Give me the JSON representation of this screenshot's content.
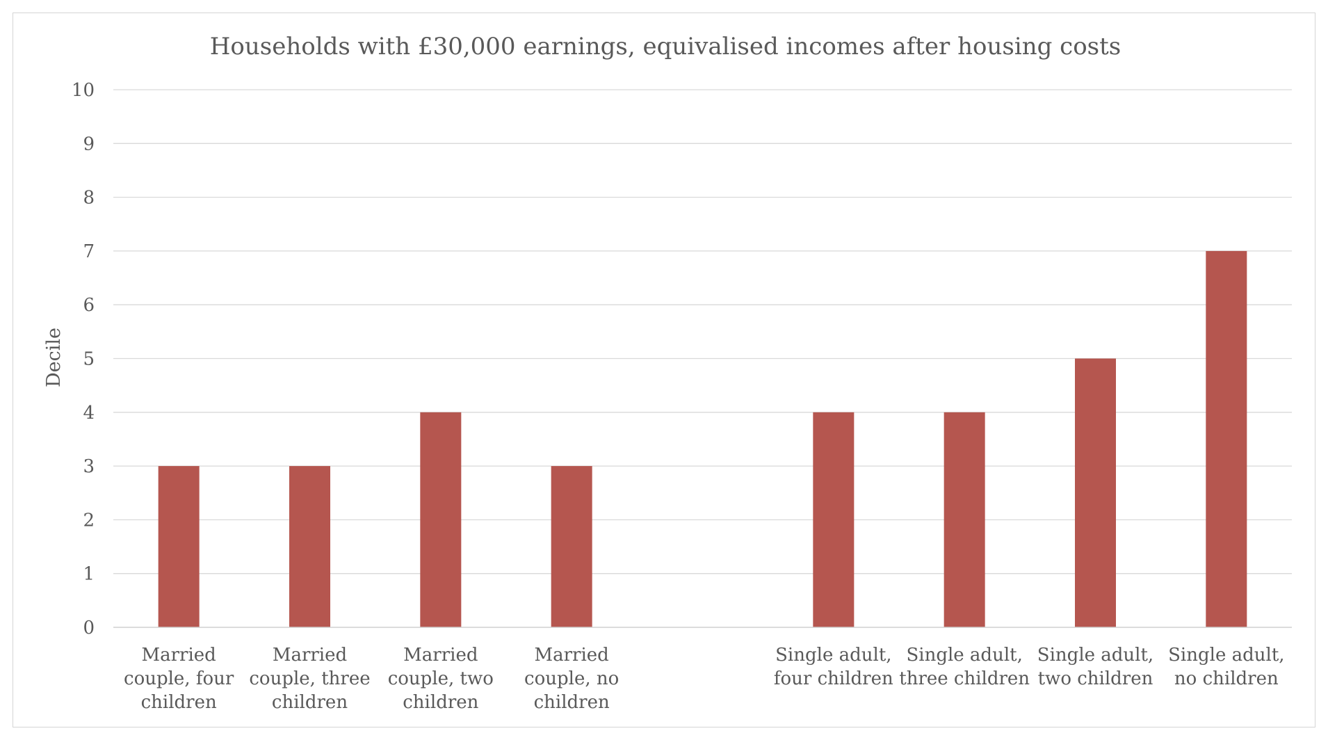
{
  "chart_data": {
    "type": "bar",
    "title": "Households with £30,000 earnings, equivalised incomes after housing costs",
    "xlabel": "",
    "ylabel": "Decile",
    "ylim": [
      0,
      10
    ],
    "yticks": [
      0,
      1,
      2,
      3,
      4,
      5,
      6,
      7,
      8,
      9,
      10
    ],
    "grid": true,
    "bar_color": "#b5564f",
    "categories": [
      [
        "Married",
        "couple, four",
        "children"
      ],
      [
        "Married",
        "couple, three",
        "children"
      ],
      [
        "Married",
        "couple, two",
        "children"
      ],
      [
        "Married",
        "couple, no",
        "children"
      ],
      [],
      [
        "Single adult,",
        "four children"
      ],
      [
        "Single adult,",
        "three children"
      ],
      [
        "Single adult,",
        "two children"
      ],
      [
        "Single adult,",
        "no children"
      ]
    ],
    "values": [
      3,
      3,
      4,
      3,
      null,
      4,
      4,
      5,
      7
    ]
  }
}
